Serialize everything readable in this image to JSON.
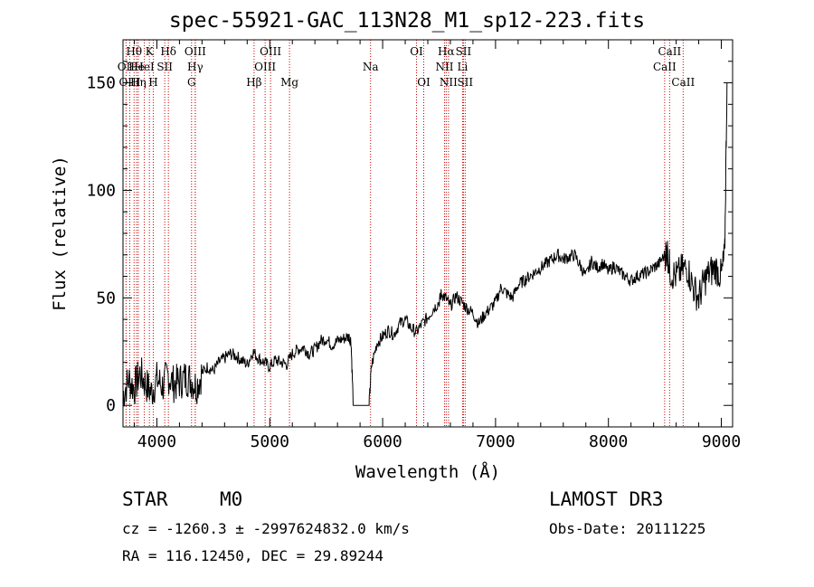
{
  "title": "spec-55921-GAC_113N28_M1_sp12-223.fits",
  "info": {
    "class": "STAR",
    "subclass": "M0",
    "survey": "LAMOST DR3",
    "cz": "cz = -1260.3 ± -2997624832.0 km/s",
    "obs_date": "Obs-Date: 20111225",
    "radec": "RA = 116.12450, DEC =  29.89244"
  },
  "colors": {
    "spectrum": "#000000",
    "line_marker": "#cc0000",
    "axes": "#000000"
  },
  "chart_data": {
    "type": "line",
    "xlabel": "Wavelength (Å)",
    "ylabel": "Flux (relative)",
    "xlim": [
      3700,
      9100
    ],
    "ylim": [
      -10,
      170
    ],
    "xticks": [
      4000,
      5000,
      6000,
      7000,
      8000,
      9000
    ],
    "yticks": [
      0,
      50,
      100,
      150
    ],
    "grid": false,
    "series": [
      {
        "x": [
          3700,
          3750,
          3800,
          3850,
          3900,
          3950,
          4000,
          4050,
          4100,
          4150,
          4200,
          4250,
          4300,
          4350,
          4400,
          4450,
          4500,
          4550,
          4600,
          4650,
          4700,
          4750,
          4800,
          4850,
          4900,
          4950,
          5000,
          5050,
          5100,
          5150,
          5200,
          5250,
          5300,
          5350,
          5400,
          5450,
          5500,
          5550,
          5600,
          5650,
          5700,
          5720,
          5740,
          5760,
          5800,
          5850,
          5880,
          5900,
          5950,
          6000,
          6050,
          6100,
          6150,
          6200,
          6250,
          6300,
          6350,
          6400,
          6450,
          6500,
          6520,
          6560,
          6600,
          6650,
          6700,
          6750,
          6800,
          6850,
          6900,
          6950,
          7000,
          7050,
          7100,
          7150,
          7200,
          7250,
          7300,
          7350,
          7400,
          7450,
          7500,
          7550,
          7600,
          7650,
          7700,
          7750,
          7800,
          7850,
          7900,
          7950,
          8000,
          8050,
          8100,
          8150,
          8200,
          8250,
          8300,
          8350,
          8400,
          8450,
          8500,
          8520,
          8550,
          8600,
          8650,
          8700,
          8750,
          8800,
          8850,
          8900,
          8950,
          9000,
          9030,
          9050
        ],
        "y": [
          5,
          12,
          8,
          15,
          10,
          6,
          12,
          9,
          14,
          10,
          11,
          13,
          12,
          9,
          15,
          18,
          16,
          20,
          22,
          24,
          23,
          21,
          19,
          25,
          22,
          20,
          18,
          21,
          20,
          19,
          24,
          26,
          27,
          24,
          26,
          30,
          31,
          28,
          30,
          31,
          32,
          30,
          0,
          0,
          0,
          0,
          0,
          18,
          29,
          32,
          35,
          33,
          38,
          40,
          36,
          34,
          38,
          41,
          45,
          48,
          52,
          50,
          46,
          51,
          48,
          45,
          43,
          38,
          42,
          45,
          48,
          55,
          52,
          50,
          56,
          58,
          60,
          62,
          64,
          66,
          68,
          70,
          68,
          69,
          70,
          65,
          60,
          67,
          64,
          66,
          62,
          65,
          62,
          60,
          58,
          60,
          61,
          62,
          64,
          66,
          70,
          72,
          62,
          60,
          63,
          64,
          55,
          50,
          58,
          62,
          64,
          60,
          70,
          150
        ]
      }
    ],
    "lines": [
      {
        "name": "OII",
        "w": 3727,
        "row": 2
      },
      {
        "name": "OIII",
        "w": 3760,
        "row": 3
      },
      {
        "name": "Hθ",
        "w": 3798,
        "row": 1
      },
      {
        "name": "He",
        "w": 3820,
        "row": 2
      },
      {
        "name": "Hη",
        "w": 3835,
        "row": 3
      },
      {
        "name": "K",
        "w": 3934,
        "row": 1
      },
      {
        "name": "HeI",
        "w": 3889,
        "row": 2
      },
      {
        "name": "H",
        "w": 3968,
        "row": 3
      },
      {
        "name": "SII",
        "w": 4070,
        "row": 2
      },
      {
        "name": "Hδ",
        "w": 4102,
        "row": 1
      },
      {
        "name": "OIII",
        "w": 4340,
        "row": 1
      },
      {
        "name": "Hγ",
        "w": 4340,
        "row": 2
      },
      {
        "name": "G",
        "w": 4307,
        "row": 3
      },
      {
        "name": "Hβ",
        "w": 4861,
        "row": 3
      },
      {
        "name": "OIII",
        "w": 5007,
        "row": 1
      },
      {
        "name": "OIII",
        "w": 4959,
        "row": 2
      },
      {
        "name": "Mg",
        "w": 5175,
        "row": 3
      },
      {
        "name": "Na",
        "w": 5893,
        "row": 2
      },
      {
        "name": "OI",
        "w": 6300,
        "row": 1
      },
      {
        "name": "OI",
        "w": 6364,
        "row": 3
      },
      {
        "name": "Hα",
        "w": 6563,
        "row": 1
      },
      {
        "name": "SII",
        "w": 6716,
        "row": 1
      },
      {
        "name": "NII",
        "w": 6548,
        "row": 2
      },
      {
        "name": "Li",
        "w": 6708,
        "row": 2
      },
      {
        "name": "NII",
        "w": 6583,
        "row": 3
      },
      {
        "name": "SII",
        "w": 6731,
        "row": 3
      },
      {
        "name": "CaII",
        "w": 8542,
        "row": 1
      },
      {
        "name": "CaII",
        "w": 8498,
        "row": 2
      },
      {
        "name": "CaII",
        "w": 8662,
        "row": 3
      }
    ]
  }
}
